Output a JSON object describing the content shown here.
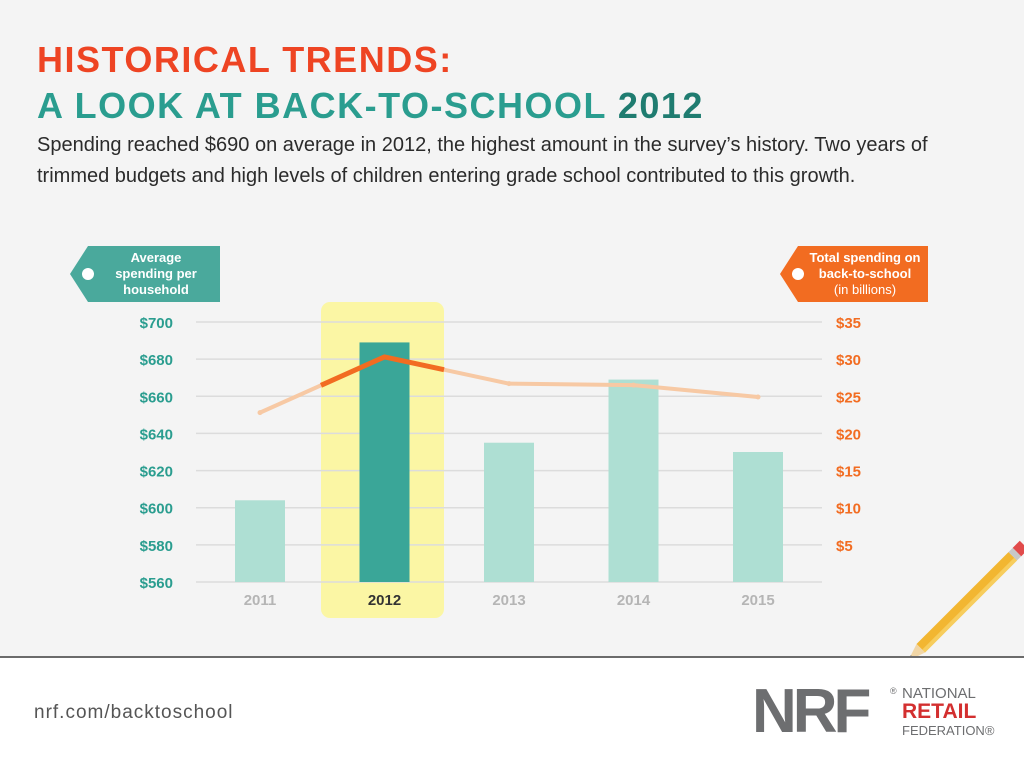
{
  "title": {
    "line1": "HISTORICAL TRENDS:",
    "line2": "A LOOK AT BACK-TO-SCHOOL",
    "line2_highlight": "2012"
  },
  "subtitle": "Spending reached $690 on average in 2012, the highest amount in the survey’s history. Two years of trimmed budgets and high levels of children entering grade school contributed to this growth.",
  "left_tag": {
    "line1": "Average",
    "line2": "spending per",
    "line3": "household"
  },
  "right_tag": {
    "line1": "Total spending on",
    "line2": "back-to-school",
    "line3": "(in billions)"
  },
  "colors": {
    "title_orange": "#ee4423",
    "title_teal": "#2a9d8f",
    "teal_bar": "#aedfd3",
    "teal_bar_highlight": "#3aa698",
    "highlight_band": "#fbf6a4",
    "line_orange": "#f26c21",
    "line_orange_faded": "#f7c9a4",
    "left_axis": "#2a9d8f",
    "right_axis": "#f26c21"
  },
  "chart_data": {
    "type": "bar",
    "categories": [
      "2011",
      "2012",
      "2013",
      "2014",
      "2015"
    ],
    "highlight_category": "2012",
    "series": [
      {
        "axis": "left",
        "type": "bar",
        "values": [
          604,
          689,
          635,
          669,
          630
        ]
      },
      {
        "axis": "right",
        "type": "line",
        "values": [
          22.8,
          30.3,
          26.7,
          26.5,
          24.9
        ]
      }
    ],
    "left_axis": {
      "ylim": [
        560,
        700
      ],
      "ticks": [
        "$700",
        "$680",
        "$660",
        "$640",
        "$620",
        "$600",
        "$580",
        "$560"
      ],
      "tick_values": [
        700,
        680,
        660,
        640,
        620,
        600,
        580,
        560
      ]
    },
    "right_axis": {
      "ylim": [
        0,
        35
      ],
      "ticks": [
        "$35",
        "$30",
        "$25",
        "$20",
        "$15",
        "$10",
        "$5"
      ],
      "tick_values": [
        35,
        30,
        25,
        20,
        15,
        10,
        5
      ]
    },
    "grid": true
  },
  "footer": {
    "url": "nrf.com/backtoschool",
    "logo_letters": "NRF",
    "logo_reg": "®",
    "logo_line1": "NATIONAL",
    "logo_line2": "RETAIL",
    "logo_line3": "FEDERATION®"
  }
}
